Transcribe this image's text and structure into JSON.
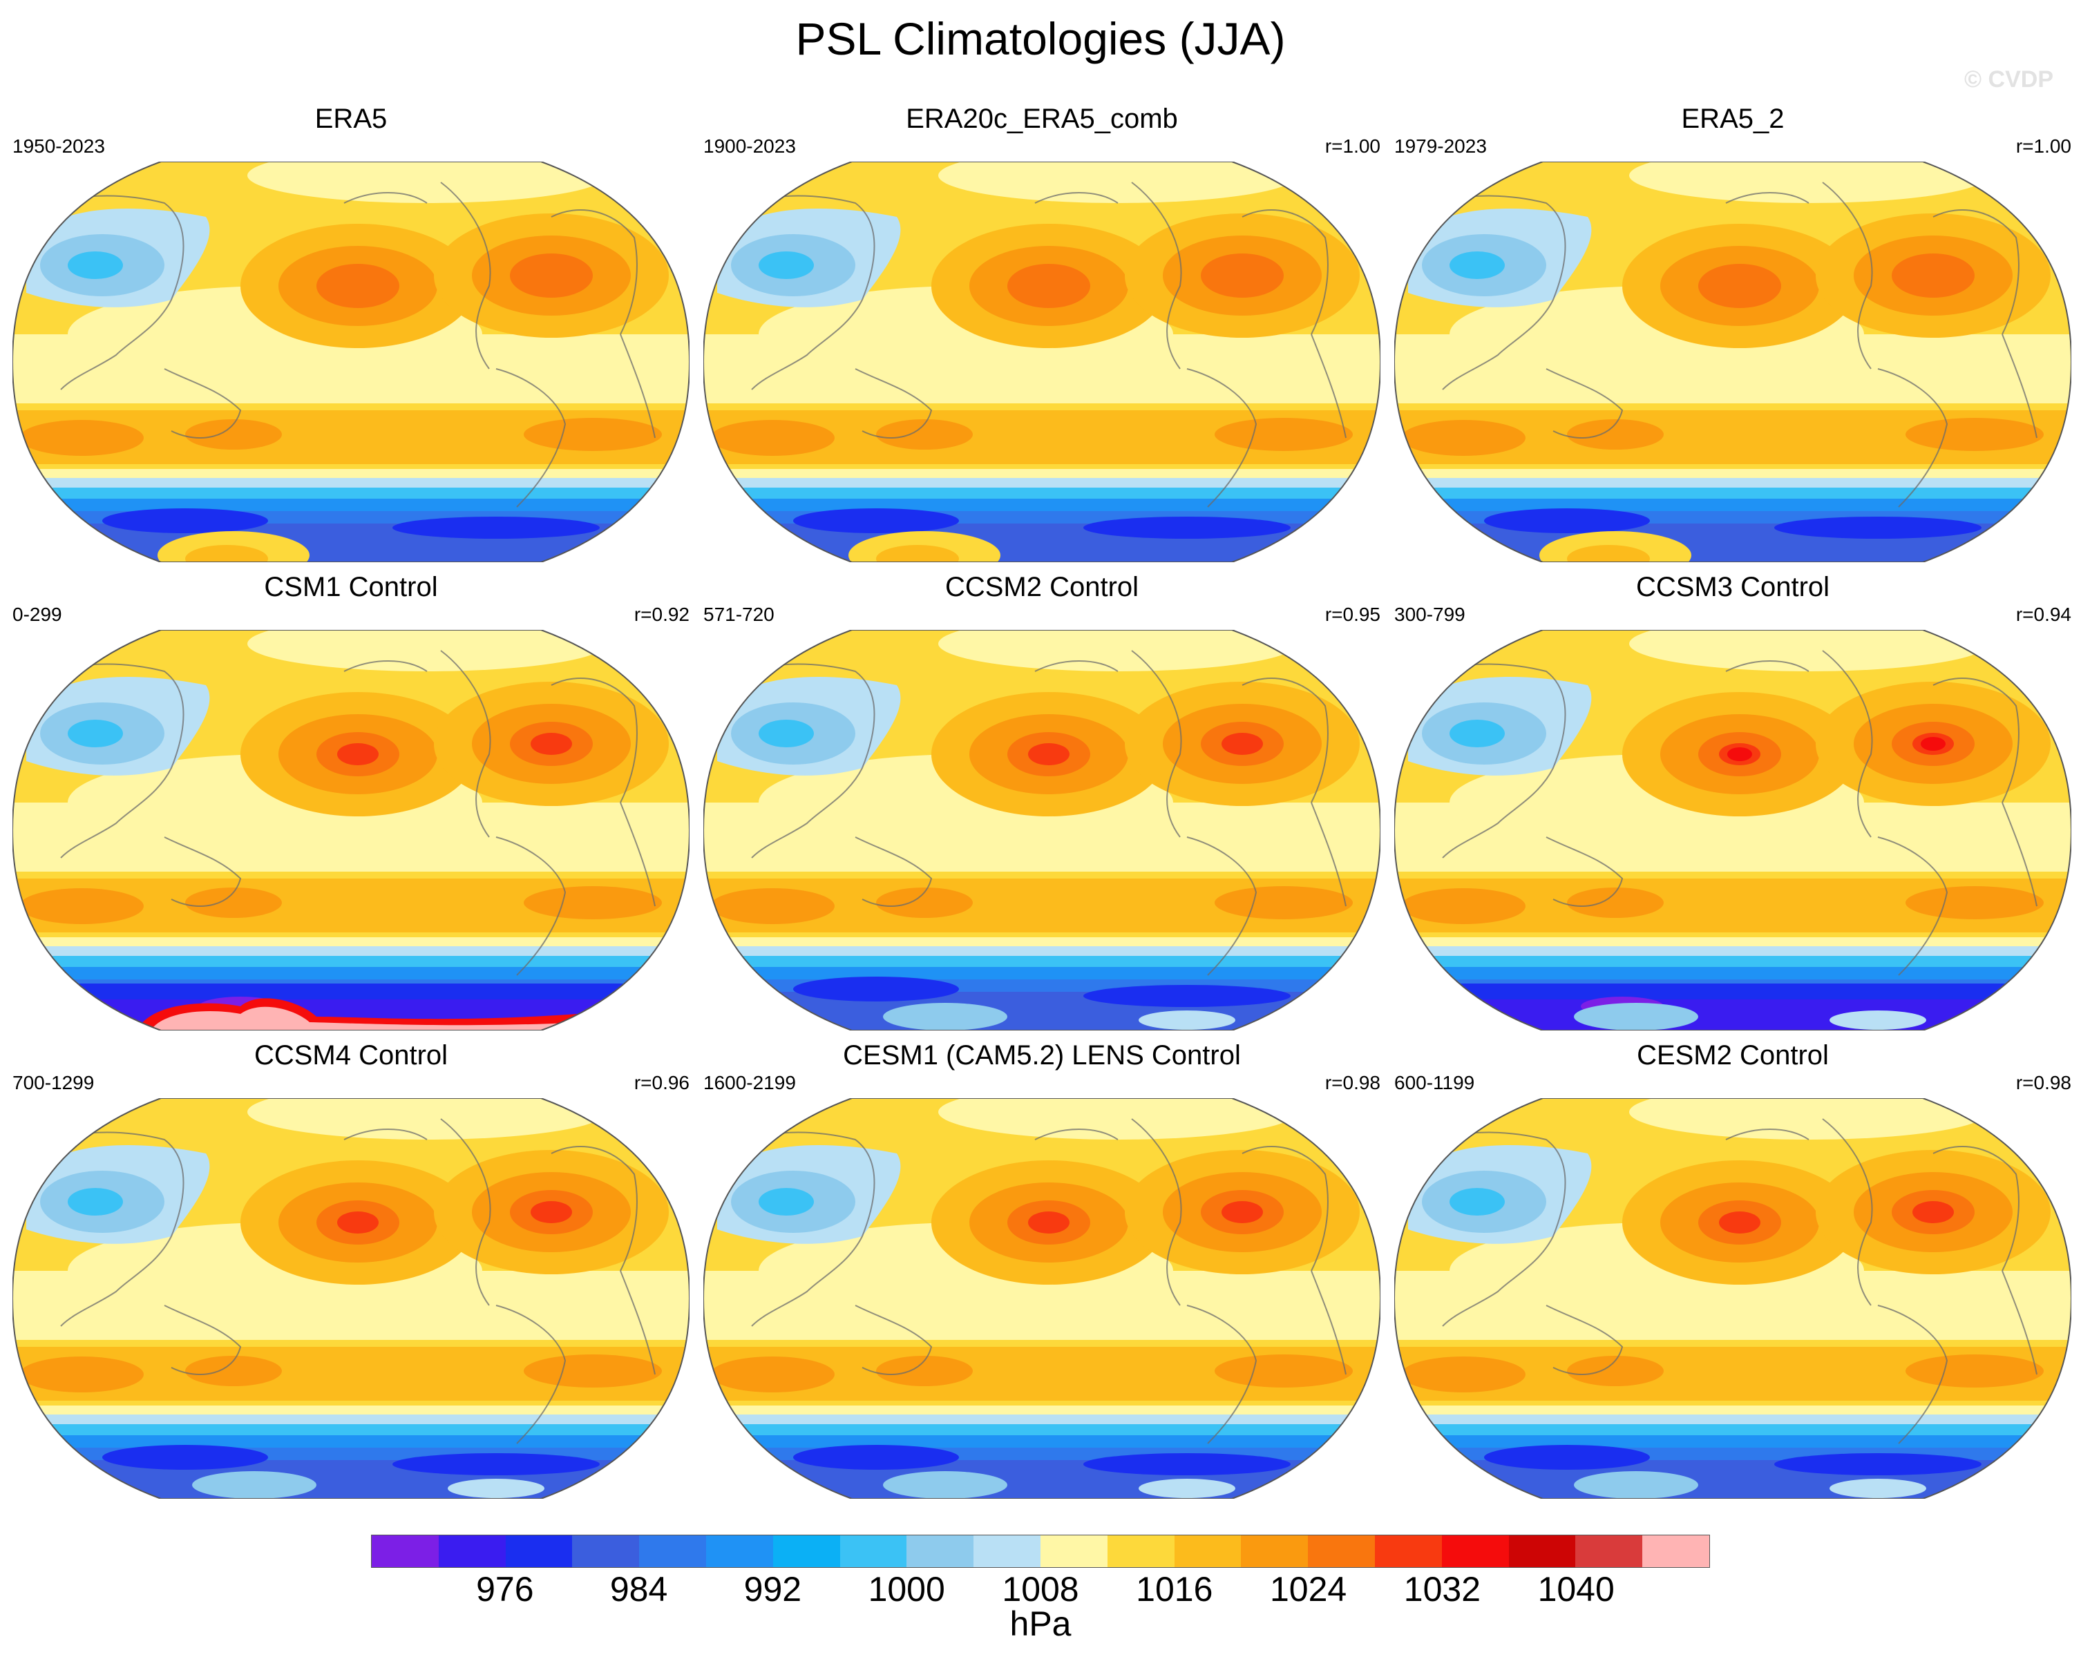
{
  "title": "PSL Climatologies (JJA)",
  "credit": "© CVDP",
  "panels": [
    {
      "title": "ERA5",
      "years": "1950-2023",
      "corr": "",
      "variant": "obs"
    },
    {
      "title": "ERA20c_ERA5_comb",
      "years": "1900-2023",
      "corr": "r=1.00",
      "variant": "obs"
    },
    {
      "title": "ERA5_2",
      "years": "1979-2023",
      "corr": "r=1.00",
      "variant": "obs"
    },
    {
      "title": "CSM1 Control",
      "years": "0-299",
      "corr": "r=0.92",
      "variant": "csm1"
    },
    {
      "title": "CCSM2 Control",
      "years": "571-720",
      "corr": "r=0.95",
      "variant": "model"
    },
    {
      "title": "CCSM3 Control",
      "years": "300-799",
      "corr": "r=0.94",
      "variant": "strong"
    },
    {
      "title": "CCSM4 Control",
      "years": "700-1299",
      "corr": "r=0.96",
      "variant": "model"
    },
    {
      "title": "CESM1 (CAM5.2) LENS Control",
      "years": "1600-2199",
      "corr": "r=0.98",
      "variant": "model"
    },
    {
      "title": "CESM2 Control",
      "years": "600-1199",
      "corr": "r=0.98",
      "variant": "model"
    }
  ],
  "colorbar": {
    "colors": [
      "#7c1fe6",
      "#3a1cf0",
      "#1a2ef0",
      "#3b5ede",
      "#2f79ec",
      "#1f92f5",
      "#0bb0f5",
      "#3bc2f5",
      "#8ecbed",
      "#b9e0f5",
      "#fff7a6",
      "#fdd93b",
      "#fcbb1c",
      "#fa9a0f",
      "#f9760e",
      "#f83a10",
      "#f50c0c",
      "#cd0505",
      "#d93b3b",
      "#ffb4b4"
    ],
    "tick_labels": [
      "976",
      "984",
      "992",
      "1000",
      "1008",
      "1016",
      "1024",
      "1032",
      "1040"
    ],
    "units": "hPa"
  },
  "colors": {
    "land_outline": "#6b6b6b",
    "warm_high": "#f9760e",
    "deep_low": "#2f50e0"
  }
}
